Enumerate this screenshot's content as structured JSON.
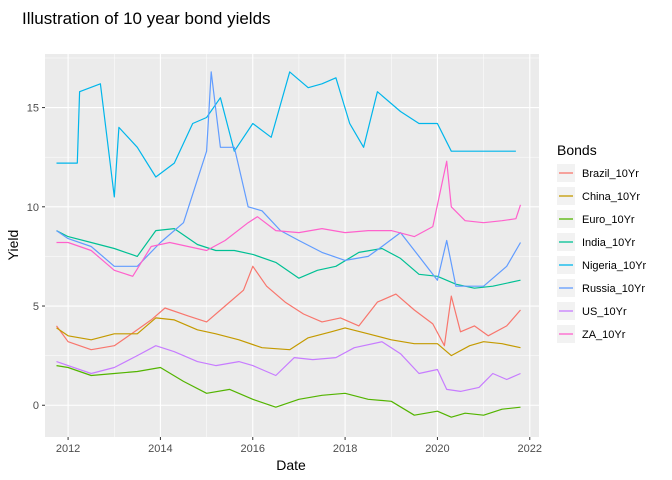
{
  "chart_data": {
    "type": "line",
    "title": "Illustration of 10 year bond yields",
    "xlabel": "Date",
    "ylabel": "Yield",
    "x_ticks": [
      "2012",
      "2014",
      "2016",
      "2018",
      "2020",
      "2022"
    ],
    "y_ticks": [
      "0",
      "5",
      "10",
      "15"
    ],
    "xlim": [
      2011.5,
      2022.2
    ],
    "ylim": [
      -1.6,
      17.7
    ],
    "grid": true,
    "legend": {
      "title": "Bonds",
      "position": "right"
    },
    "series": [
      {
        "name": "Brazil_10Yr",
        "color": "#F8766D",
        "x": [
          2011.75,
          2012.0,
          2012.5,
          2013.0,
          2013.5,
          2013.8,
          2014.1,
          2014.6,
          2015.0,
          2015.4,
          2015.8,
          2016.0,
          2016.3,
          2016.7,
          2017.1,
          2017.5,
          2017.9,
          2018.3,
          2018.7,
          2019.1,
          2019.5,
          2019.9,
          2020.15,
          2020.3,
          2020.5,
          2020.8,
          2021.1,
          2021.5,
          2021.8
        ],
        "y": [
          4.0,
          3.2,
          2.8,
          3.0,
          3.8,
          4.3,
          4.9,
          4.5,
          4.2,
          5.0,
          5.8,
          7.0,
          6.0,
          5.2,
          4.6,
          4.2,
          4.4,
          4.0,
          5.2,
          5.6,
          4.8,
          4.1,
          3.0,
          5.5,
          3.7,
          4.0,
          3.5,
          4.0,
          4.8
        ]
      },
      {
        "name": "China_10Yr",
        "color": "#C49A00",
        "x": [
          2011.75,
          2012.0,
          2012.5,
          2013.0,
          2013.5,
          2013.9,
          2014.3,
          2014.8,
          2015.2,
          2015.7,
          2016.2,
          2016.8,
          2017.2,
          2017.7,
          2018.0,
          2018.5,
          2019.0,
          2019.5,
          2020.0,
          2020.3,
          2020.7,
          2021.0,
          2021.4,
          2021.8
        ],
        "y": [
          3.9,
          3.5,
          3.3,
          3.6,
          3.6,
          4.4,
          4.3,
          3.8,
          3.6,
          3.3,
          2.9,
          2.8,
          3.4,
          3.7,
          3.9,
          3.6,
          3.3,
          3.1,
          3.1,
          2.5,
          3.0,
          3.2,
          3.1,
          2.9
        ]
      },
      {
        "name": "Euro_10Yr",
        "color": "#53B400",
        "x": [
          2011.75,
          2012.0,
          2012.5,
          2013.0,
          2013.5,
          2014.0,
          2014.5,
          2015.0,
          2015.5,
          2016.0,
          2016.5,
          2017.0,
          2017.5,
          2018.0,
          2018.5,
          2019.0,
          2019.5,
          2020.0,
          2020.3,
          2020.6,
          2021.0,
          2021.4,
          2021.8
        ],
        "y": [
          2.0,
          1.9,
          1.5,
          1.6,
          1.7,
          1.9,
          1.2,
          0.6,
          0.8,
          0.3,
          -0.1,
          0.3,
          0.5,
          0.6,
          0.3,
          0.2,
          -0.5,
          -0.3,
          -0.6,
          -0.4,
          -0.5,
          -0.2,
          -0.1
        ]
      },
      {
        "name": "India_10Yr",
        "color": "#00C094",
        "x": [
          2011.75,
          2012.0,
          2012.5,
          2013.0,
          2013.5,
          2013.9,
          2014.3,
          2014.8,
          2015.2,
          2015.6,
          2016.0,
          2016.5,
          2017.0,
          2017.4,
          2017.8,
          2018.3,
          2018.8,
          2019.2,
          2019.6,
          2020.0,
          2020.4,
          2020.8,
          2021.2,
          2021.8
        ],
        "y": [
          8.8,
          8.5,
          8.2,
          7.9,
          7.5,
          8.8,
          8.9,
          8.1,
          7.8,
          7.8,
          7.6,
          7.2,
          6.4,
          6.8,
          7.0,
          7.7,
          7.9,
          7.4,
          6.6,
          6.5,
          6.1,
          5.9,
          6.0,
          6.3
        ]
      },
      {
        "name": "Nigeria_10Yr",
        "color": "#00B6EB",
        "x": [
          2011.75,
          2012.2,
          2012.25,
          2012.7,
          2013.0,
          2013.1,
          2013.5,
          2013.9,
          2014.3,
          2014.7,
          2015.0,
          2015.3,
          2015.6,
          2016.0,
          2016.4,
          2016.8,
          2017.2,
          2017.5,
          2017.8,
          2018.1,
          2018.4,
          2018.7,
          2019.2,
          2019.6,
          2020.0,
          2020.3,
          2020.7,
          2021.0,
          2021.5,
          2021.7
        ],
        "y": [
          12.2,
          12.2,
          15.8,
          16.2,
          10.5,
          14.0,
          13.0,
          11.5,
          12.2,
          14.2,
          14.5,
          15.5,
          12.8,
          14.2,
          13.5,
          16.8,
          16.0,
          16.2,
          16.5,
          14.2,
          13.0,
          15.8,
          14.8,
          14.2,
          14.2,
          12.8,
          12.8,
          12.8,
          12.8,
          12.8
        ]
      },
      {
        "name": "Russia_10Yr",
        "color": "#619CFF",
        "x": [
          2011.75,
          2012.0,
          2012.5,
          2013.0,
          2013.5,
          2014.0,
          2014.5,
          2015.0,
          2015.1,
          2015.3,
          2015.6,
          2015.9,
          2016.2,
          2016.6,
          2017.0,
          2017.5,
          2018.0,
          2018.5,
          2018.8,
          2019.2,
          2019.6,
          2020.0,
          2020.2,
          2020.4,
          2020.7,
          2021.0,
          2021.5,
          2021.8
        ],
        "y": [
          8.8,
          8.4,
          8.0,
          7.0,
          7.0,
          8.2,
          9.2,
          12.8,
          16.8,
          13.0,
          13.0,
          10.0,
          9.8,
          8.8,
          8.3,
          7.7,
          7.3,
          7.5,
          8.0,
          8.7,
          7.5,
          6.3,
          8.3,
          6.0,
          6.0,
          6.0,
          7.0,
          8.2
        ]
      },
      {
        "name": "US_10Yr",
        "color": "#C77CFF",
        "x": [
          2011.75,
          2012.0,
          2012.5,
          2013.0,
          2013.5,
          2013.9,
          2014.3,
          2014.8,
          2015.2,
          2015.7,
          2016.0,
          2016.5,
          2016.9,
          2017.3,
          2017.8,
          2018.2,
          2018.8,
          2019.2,
          2019.6,
          2020.0,
          2020.2,
          2020.5,
          2020.9,
          2021.2,
          2021.5,
          2021.8
        ],
        "y": [
          2.2,
          2.0,
          1.6,
          1.9,
          2.5,
          3.0,
          2.7,
          2.2,
          2.0,
          2.2,
          2.0,
          1.5,
          2.4,
          2.3,
          2.4,
          2.9,
          3.2,
          2.6,
          1.6,
          1.8,
          0.8,
          0.7,
          0.9,
          1.6,
          1.3,
          1.6
        ]
      },
      {
        "name": "ZA_10Yr",
        "color": "#FF61CC",
        "x": [
          2011.75,
          2012.0,
          2012.5,
          2013.0,
          2013.4,
          2013.8,
          2014.2,
          2014.6,
          2015.0,
          2015.4,
          2015.9,
          2016.1,
          2016.5,
          2017.0,
          2017.5,
          2018.0,
          2018.5,
          2019.0,
          2019.5,
          2019.9,
          2020.2,
          2020.3,
          2020.6,
          2021.0,
          2021.4,
          2021.7,
          2021.8
        ],
        "y": [
          8.2,
          8.2,
          7.8,
          6.8,
          6.5,
          8.0,
          8.2,
          8.0,
          7.8,
          8.3,
          9.2,
          9.5,
          8.8,
          8.7,
          8.9,
          8.7,
          8.8,
          8.8,
          8.5,
          9.0,
          12.3,
          10.0,
          9.3,
          9.2,
          9.3,
          9.4,
          10.1
        ]
      }
    ]
  }
}
